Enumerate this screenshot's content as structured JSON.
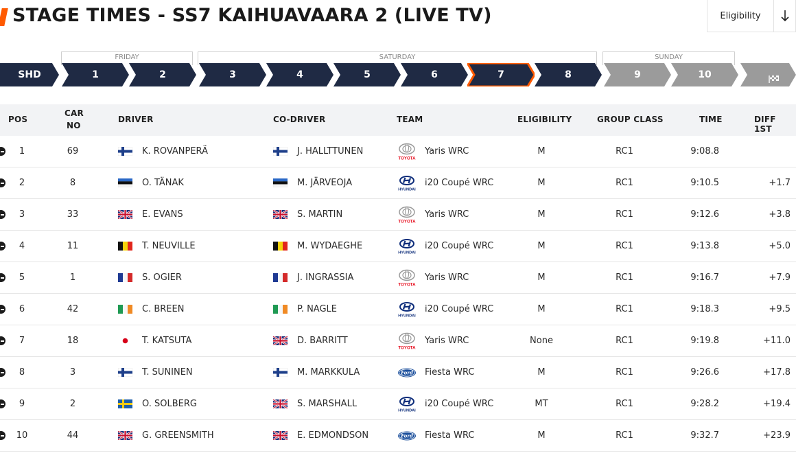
{
  "page": {
    "title": "STAGE TIMES - SS7 KAIHUAVAARA 2 (LIVE TV)",
    "filter_label": "Eligibility",
    "accent_color": "#ff5a00",
    "nav_color": "#1f2a44",
    "nav_inactive_color": "#9b9b9b"
  },
  "days": [
    "FRIDAY",
    "SATURDAY",
    "SUNDAY"
  ],
  "stages": [
    {
      "label": "SHD",
      "state": "done"
    },
    {
      "label": "1",
      "state": "done"
    },
    {
      "label": "2",
      "state": "done"
    },
    {
      "label": "3",
      "state": "done"
    },
    {
      "label": "4",
      "state": "done"
    },
    {
      "label": "5",
      "state": "done"
    },
    {
      "label": "6",
      "state": "done"
    },
    {
      "label": "7",
      "state": "active"
    },
    {
      "label": "8",
      "state": "done"
    },
    {
      "label": "9",
      "state": "upcoming"
    },
    {
      "label": "10",
      "state": "upcoming"
    },
    {
      "label": "",
      "state": "finish",
      "icon": "checkered-flag-icon"
    }
  ],
  "columns": {
    "pos": "POS",
    "car_line1": "CAR",
    "car_line2": "NO",
    "driver": "DRIVER",
    "codriver": "CO-DRIVER",
    "team": "TEAM",
    "eligibility": "ELIGIBILITY",
    "group_class": "GROUP CLASS",
    "time": "TIME",
    "diff": "DIFF 1ST"
  },
  "rows": [
    {
      "pos": "1",
      "car": "69",
      "driver": "K. ROVANPERÄ",
      "driver_flag": "FIN",
      "codriver": "J. HALLTTUNEN",
      "codriver_flag": "FIN",
      "brand": "toyota",
      "team": "Yaris WRC",
      "elig": "M",
      "cls": "RC1",
      "time": "9:08.8",
      "diff": ""
    },
    {
      "pos": "2",
      "car": "8",
      "driver": "O. TÄNAK",
      "driver_flag": "EST",
      "codriver": "M. JÄRVEOJA",
      "codriver_flag": "EST",
      "brand": "hyundai",
      "team": "i20 Coupé WRC",
      "elig": "M",
      "cls": "RC1",
      "time": "9:10.5",
      "diff": "+1.7"
    },
    {
      "pos": "3",
      "car": "33",
      "driver": "E. EVANS",
      "driver_flag": "GBR",
      "codriver": "S. MARTIN",
      "codriver_flag": "GBR",
      "brand": "toyota",
      "team": "Yaris WRC",
      "elig": "M",
      "cls": "RC1",
      "time": "9:12.6",
      "diff": "+3.8"
    },
    {
      "pos": "4",
      "car": "11",
      "driver": "T. NEUVILLE",
      "driver_flag": "BEL",
      "codriver": "M. WYDAEGHE",
      "codriver_flag": "BEL",
      "brand": "hyundai",
      "team": "i20 Coupé WRC",
      "elig": "M",
      "cls": "RC1",
      "time": "9:13.8",
      "diff": "+5.0"
    },
    {
      "pos": "5",
      "car": "1",
      "driver": "S. OGIER",
      "driver_flag": "FRA",
      "codriver": "J. INGRASSIA",
      "codriver_flag": "FRA",
      "brand": "toyota",
      "team": "Yaris WRC",
      "elig": "M",
      "cls": "RC1",
      "time": "9:16.7",
      "diff": "+7.9"
    },
    {
      "pos": "6",
      "car": "42",
      "driver": "C. BREEN",
      "driver_flag": "IRL",
      "codriver": "P. NAGLE",
      "codriver_flag": "IRL",
      "brand": "hyundai",
      "team": "i20 Coupé WRC",
      "elig": "M",
      "cls": "RC1",
      "time": "9:18.3",
      "diff": "+9.5"
    },
    {
      "pos": "7",
      "car": "18",
      "driver": "T. KATSUTA",
      "driver_flag": "JPN",
      "codriver": "D. BARRITT",
      "codriver_flag": "GBR",
      "brand": "toyota",
      "team": "Yaris WRC",
      "elig": "None",
      "cls": "RC1",
      "time": "9:19.8",
      "diff": "+11.0"
    },
    {
      "pos": "8",
      "car": "3",
      "driver": "T. SUNINEN",
      "driver_flag": "FIN",
      "codriver": "M. MARKKULA",
      "codriver_flag": "FIN",
      "brand": "ford",
      "team": "Fiesta WRC",
      "elig": "M",
      "cls": "RC1",
      "time": "9:26.6",
      "diff": "+17.8"
    },
    {
      "pos": "9",
      "car": "2",
      "driver": "O. SOLBERG",
      "driver_flag": "SWE",
      "codriver": "S. MARSHALL",
      "codriver_flag": "GBR",
      "brand": "hyundai",
      "team": "i20 Coupé WRC",
      "elig": "MT",
      "cls": "RC1",
      "time": "9:28.2",
      "diff": "+19.4"
    },
    {
      "pos": "10",
      "car": "44",
      "driver": "G. GREENSMITH",
      "driver_flag": "GBR",
      "codriver": "E. EDMONDSON",
      "codriver_flag": "GBR",
      "brand": "ford",
      "team": "Fiesta WRC",
      "elig": "M",
      "cls": "RC1",
      "time": "9:32.7",
      "diff": "+23.9"
    }
  ]
}
